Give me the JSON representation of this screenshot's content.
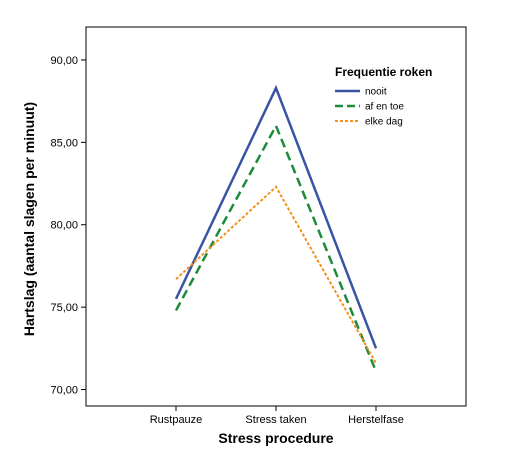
{
  "chart_data": {
    "type": "line",
    "xlabel": "Stress procedure",
    "ylabel": "Hartslag (aantal slagen per minuut)",
    "categories": [
      "Rustpauze",
      "Stress taken",
      "Herstelfase"
    ],
    "ylim": [
      69,
      92
    ],
    "yticks": [
      70,
      75,
      80,
      85,
      90
    ],
    "ytick_labels": [
      "70,00",
      "75,00",
      "80,00",
      "85,00",
      "90,00"
    ],
    "grid": false,
    "legend": {
      "title": "Frequentie roken",
      "position": "top-right"
    },
    "series": [
      {
        "name": "nooit",
        "values": [
          75.5,
          88.3,
          72.5
        ],
        "color": "#3a53a4",
        "style": "solid"
      },
      {
        "name": "af en toe",
        "values": [
          74.8,
          86.0,
          71.1
        ],
        "color": "#1e8a3c",
        "style": "dashed"
      },
      {
        "name": "elke dag",
        "values": [
          76.7,
          82.3,
          71.6
        ],
        "color": "#f39019",
        "style": "dotted"
      }
    ]
  }
}
